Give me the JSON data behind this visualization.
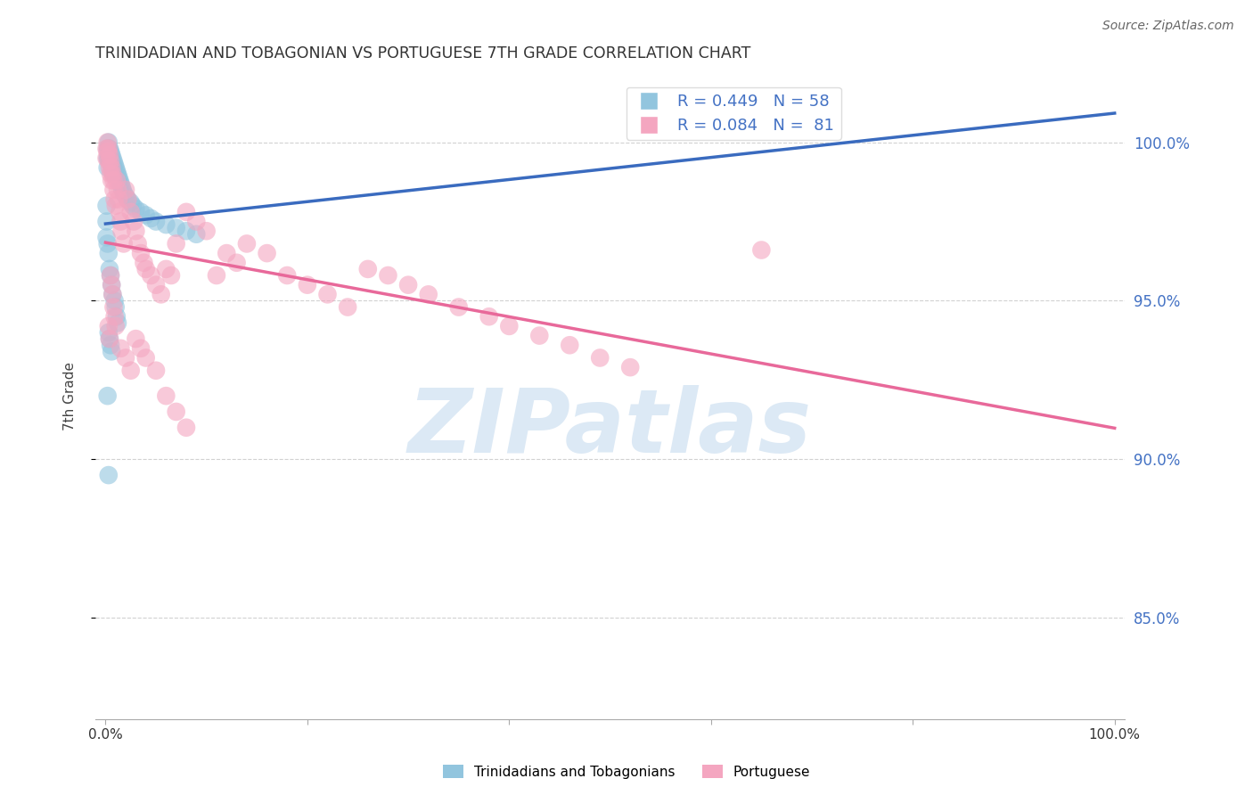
{
  "title": "TRINIDADIAN AND TOBAGONIAN VS PORTUGUESE 7TH GRADE CORRELATION CHART",
  "source": "Source: ZipAtlas.com",
  "ylabel": "7th Grade",
  "blue_label": "Trinidadians and Tobagonians",
  "pink_label": "Portuguese",
  "blue_R": 0.449,
  "blue_N": 58,
  "pink_R": 0.084,
  "pink_N": 81,
  "blue_color": "#92c5de",
  "pink_color": "#f4a6c0",
  "blue_line_color": "#3a6bbf",
  "pink_line_color": "#e8699a",
  "background_color": "#ffffff",
  "grid_color": "#cccccc",
  "right_axis_color": "#4472c4",
  "ytick_labels": [
    "85.0%",
    "90.0%",
    "95.0%",
    "100.0%"
  ],
  "ytick_values": [
    0.85,
    0.9,
    0.95,
    1.0
  ],
  "ylim": [
    0.818,
    1.022
  ],
  "xlim": [
    -0.01,
    1.01
  ],
  "blue_x": [
    0.001,
    0.001,
    0.001,
    0.002,
    0.002,
    0.002,
    0.002,
    0.003,
    0.003,
    0.003,
    0.003,
    0.004,
    0.004,
    0.004,
    0.005,
    0.005,
    0.005,
    0.006,
    0.006,
    0.006,
    0.007,
    0.007,
    0.007,
    0.008,
    0.008,
    0.009,
    0.009,
    0.01,
    0.01,
    0.011,
    0.011,
    0.012,
    0.012,
    0.013,
    0.014,
    0.015,
    0.016,
    0.017,
    0.018,
    0.02,
    0.022,
    0.025,
    0.027,
    0.03,
    0.035,
    0.04,
    0.045,
    0.05,
    0.06,
    0.07,
    0.08,
    0.09,
    0.003,
    0.004,
    0.005,
    0.006,
    0.002,
    0.003
  ],
  "blue_y": [
    0.98,
    0.975,
    0.97,
    0.998,
    0.995,
    0.992,
    0.968,
    1.0,
    0.998,
    0.995,
    0.965,
    0.998,
    0.995,
    0.96,
    0.997,
    0.994,
    0.958,
    0.996,
    0.993,
    0.955,
    0.995,
    0.992,
    0.952,
    0.994,
    0.99,
    0.993,
    0.95,
    0.992,
    0.948,
    0.991,
    0.945,
    0.99,
    0.943,
    0.989,
    0.988,
    0.987,
    0.986,
    0.985,
    0.984,
    0.983,
    0.982,
    0.981,
    0.98,
    0.979,
    0.978,
    0.977,
    0.976,
    0.975,
    0.974,
    0.973,
    0.972,
    0.971,
    0.94,
    0.938,
    0.936,
    0.934,
    0.92,
    0.895
  ],
  "pink_x": [
    0.001,
    0.001,
    0.002,
    0.002,
    0.003,
    0.003,
    0.004,
    0.004,
    0.005,
    0.005,
    0.006,
    0.006,
    0.007,
    0.008,
    0.008,
    0.009,
    0.01,
    0.011,
    0.012,
    0.013,
    0.014,
    0.015,
    0.016,
    0.018,
    0.02,
    0.022,
    0.025,
    0.028,
    0.03,
    0.032,
    0.035,
    0.038,
    0.04,
    0.045,
    0.05,
    0.055,
    0.06,
    0.065,
    0.07,
    0.08,
    0.09,
    0.1,
    0.11,
    0.12,
    0.13,
    0.14,
    0.16,
    0.18,
    0.2,
    0.22,
    0.24,
    0.26,
    0.28,
    0.3,
    0.32,
    0.35,
    0.38,
    0.4,
    0.43,
    0.46,
    0.49,
    0.52,
    0.003,
    0.004,
    0.005,
    0.006,
    0.007,
    0.008,
    0.009,
    0.01,
    0.015,
    0.02,
    0.025,
    0.03,
    0.035,
    0.04,
    0.05,
    0.06,
    0.07,
    0.08,
    0.65
  ],
  "pink_y": [
    0.998,
    0.995,
    1.0,
    0.997,
    0.998,
    0.994,
    0.996,
    0.992,
    0.994,
    0.99,
    0.992,
    0.988,
    0.99,
    0.988,
    0.985,
    0.982,
    0.98,
    0.988,
    0.985,
    0.982,
    0.978,
    0.975,
    0.972,
    0.968,
    0.985,
    0.982,
    0.978,
    0.975,
    0.972,
    0.968,
    0.965,
    0.962,
    0.96,
    0.958,
    0.955,
    0.952,
    0.96,
    0.958,
    0.968,
    0.978,
    0.975,
    0.972,
    0.958,
    0.965,
    0.962,
    0.968,
    0.965,
    0.958,
    0.955,
    0.952,
    0.948,
    0.96,
    0.958,
    0.955,
    0.952,
    0.948,
    0.945,
    0.942,
    0.939,
    0.936,
    0.932,
    0.929,
    0.942,
    0.938,
    0.958,
    0.955,
    0.952,
    0.948,
    0.945,
    0.942,
    0.935,
    0.932,
    0.928,
    0.938,
    0.935,
    0.932,
    0.928,
    0.92,
    0.915,
    0.91,
    0.966
  ],
  "blue_trend": [
    0.9625,
    0.9625,
    0.2375
  ],
  "pink_trend": [
    0.9655,
    0.9655,
    0.015
  ],
  "watermark": "ZIPatlas",
  "watermark_color": "#dce9f5",
  "legend_R_values": "R = 0.449   N = 58\nR = 0.084   N =  81"
}
